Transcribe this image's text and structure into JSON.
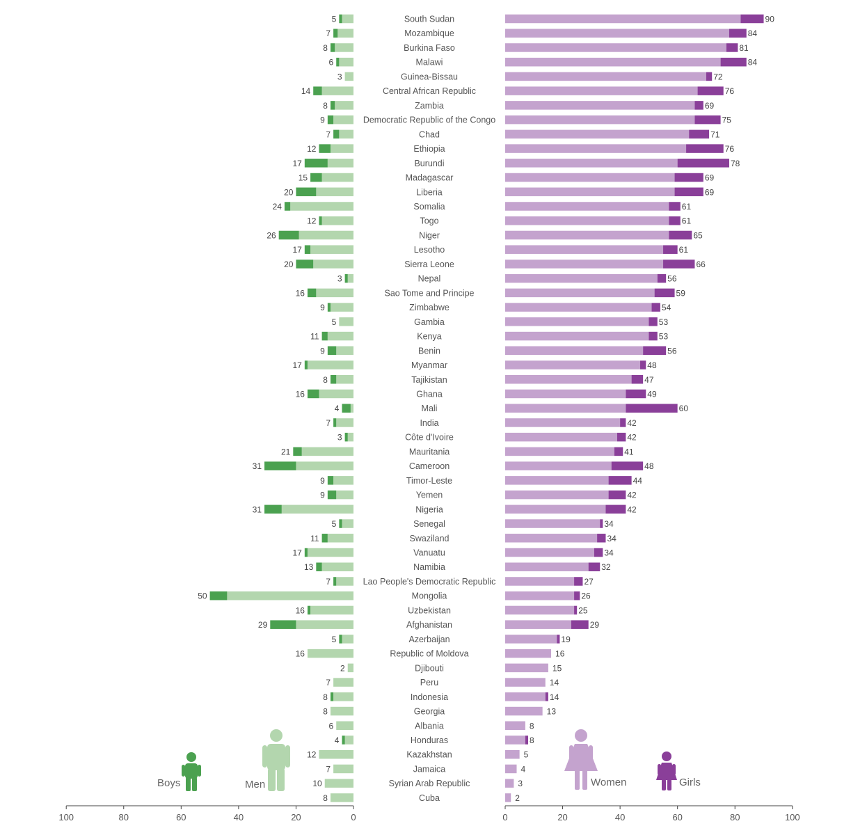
{
  "chart_data": {
    "type": "bar",
    "categories": [
      "South Sudan",
      "Mozambique",
      "Burkina Faso",
      "Malawi",
      "Guinea-Bissau",
      "Central African Republic",
      "Zambia",
      "Democratic Republic of the Congo",
      "Chad",
      "Ethiopia",
      "Burundi",
      "Madagascar",
      "Liberia",
      "Somalia",
      "Togo",
      "Niger",
      "Lesotho",
      "Sierra Leone",
      "Nepal",
      "Sao Tome and Principe",
      "Zimbabwe",
      "Gambia",
      "Kenya",
      "Benin",
      "Myanmar",
      "Tajikistan",
      "Ghana",
      "Mali",
      "India",
      "Côte d'Ivoire",
      "Mauritania",
      "Cameroon",
      "Timor-Leste",
      "Yemen",
      "Nigeria",
      "Senegal",
      "Swaziland",
      "Vanuatu",
      "Namibia",
      "Lao People's  Democratic Republic",
      "Mongolia",
      "Uzbekistan",
      "Afghanistan",
      "Azerbaijan",
      "Republic of Moldova",
      "Djibouti",
      "Peru",
      "Indonesia",
      "Georgia",
      "Albania",
      "Honduras",
      "Kazakhstan",
      "Jamaica",
      "Syrian Arab Republic",
      "Cuba"
    ],
    "series": [
      {
        "name": "Boys",
        "values": [
          1,
          1.5,
          1.5,
          1,
          0,
          3,
          1.5,
          2,
          2,
          4,
          8,
          4,
          7,
          2,
          1,
          7,
          2,
          6,
          1,
          3,
          1,
          0,
          2,
          3,
          1,
          2,
          4,
          3,
          1,
          1,
          3,
          11,
          2,
          3,
          6,
          1,
          2,
          1,
          2,
          1,
          6,
          1,
          9,
          1,
          0,
          0,
          0,
          1,
          0,
          0,
          1,
          0,
          0,
          0,
          0
        ]
      },
      {
        "name": "Men",
        "values": [
          4,
          5.5,
          6.5,
          5,
          3,
          11,
          6.5,
          7,
          5,
          8,
          9,
          11,
          13,
          22,
          11,
          19,
          15,
          14,
          2,
          13,
          8,
          5,
          9,
          6,
          16,
          6,
          12,
          1,
          6,
          2,
          18,
          20,
          7,
          6,
          25,
          4,
          9,
          16,
          11,
          6,
          44,
          15,
          20,
          4,
          16,
          2,
          7,
          7,
          8,
          6,
          3,
          12,
          7,
          10,
          8
        ]
      },
      {
        "name": "Women",
        "values": [
          82,
          78,
          77,
          75,
          70,
          67,
          66,
          66,
          64,
          63,
          60,
          59,
          59,
          57,
          57,
          57,
          55,
          55,
          53,
          52,
          51,
          50,
          50,
          48,
          47,
          44,
          42,
          42,
          40,
          39,
          38,
          37,
          36,
          36,
          35,
          33,
          32,
          31,
          29,
          24,
          24,
          24,
          23,
          18,
          16,
          15,
          14,
          14,
          13,
          7,
          7,
          5,
          4,
          3,
          2
        ]
      },
      {
        "name": "Girls",
        "values": [
          8,
          6,
          4,
          9,
          2,
          9,
          3,
          9,
          7,
          13,
          18,
          10,
          10,
          4,
          4,
          8,
          5,
          11,
          3,
          7,
          3,
          3,
          3,
          8,
          2,
          4,
          7,
          18,
          2,
          3,
          3,
          11,
          8,
          6,
          7,
          1,
          3,
          3,
          4,
          3,
          2,
          1,
          6,
          1,
          0,
          0,
          0,
          1,
          0,
          0,
          1,
          0,
          0,
          0,
          0
        ]
      }
    ],
    "left_totals": [
      5,
      7,
      8,
      6,
      3,
      14,
      8,
      9,
      7,
      12,
      17,
      15,
      20,
      24,
      12,
      26,
      17,
      20,
      3,
      16,
      9,
      5,
      11,
      9,
      17,
      8,
      16,
      4,
      7,
      3,
      21,
      31,
      9,
      9,
      31,
      5,
      11,
      17,
      13,
      7,
      50,
      16,
      29,
      5,
      16,
      2,
      7,
      8,
      8,
      6,
      4,
      12,
      7,
      10,
      8
    ],
    "right_totals": [
      90,
      84,
      81,
      84,
      72,
      76,
      69,
      75,
      71,
      76,
      78,
      69,
      69,
      61,
      61,
      65,
      61,
      66,
      56,
      59,
      54,
      53,
      53,
      56,
      48,
      47,
      49,
      60,
      42,
      42,
      41,
      48,
      44,
      42,
      42,
      34,
      34,
      34,
      32,
      27,
      26,
      25,
      29,
      19,
      16,
      15,
      14,
      14,
      13,
      8,
      8,
      5,
      4,
      3,
      2
    ],
    "left_axis": {
      "ticks": [
        "100",
        "80",
        "60",
        "40",
        "20",
        "0"
      ],
      "range": [
        100,
        0
      ]
    },
    "right_axis": {
      "ticks": [
        "0",
        "20",
        "40",
        "60",
        "80",
        "100"
      ],
      "range": [
        0,
        100
      ]
    },
    "legend": {
      "boys": "Boys",
      "men": "Men",
      "women": "Women",
      "girls": "Girls"
    },
    "colors": {
      "boys": "#4ba150",
      "men": "#b3d6ae",
      "women": "#c4a3ce",
      "girls": "#8a3f99",
      "axis": "#444444"
    }
  }
}
